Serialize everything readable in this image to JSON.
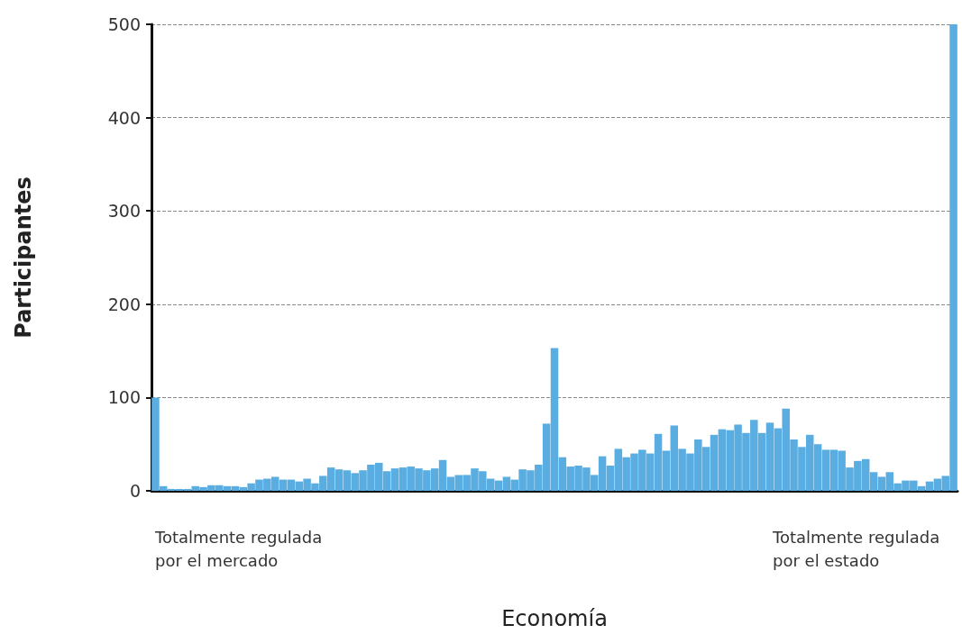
{
  "chart_data": {
    "type": "bar",
    "xlabel": "Economía",
    "ylabel": "Participantes",
    "categories": [
      null,
      null,
      null,
      null,
      null,
      null,
      null,
      null,
      null,
      null,
      null,
      null,
      null,
      null,
      null,
      null,
      null,
      null,
      null,
      null,
      null,
      null,
      null,
      null,
      null,
      null,
      null,
      null,
      null,
      null,
      null,
      null,
      null,
      null,
      null,
      null,
      null,
      null,
      null,
      null,
      null,
      null,
      null,
      null,
      null,
      null,
      null,
      null,
      null,
      null,
      null,
      null,
      null,
      null,
      null,
      null,
      null,
      null,
      null,
      null,
      null,
      null,
      null,
      null,
      null,
      null,
      null,
      null,
      null,
      null,
      null,
      null,
      null,
      null,
      null,
      null,
      null,
      null,
      null,
      null,
      null,
      null,
      null,
      null,
      null,
      null,
      null,
      null,
      null,
      null,
      null,
      null,
      null,
      null,
      null,
      null,
      null,
      null,
      null,
      null,
      null
    ],
    "values": [
      100,
      5,
      2,
      2,
      2,
      5,
      4,
      6,
      6,
      5,
      5,
      4,
      8,
      12,
      13,
      15,
      12,
      12,
      10,
      13,
      8,
      16,
      25,
      23,
      22,
      19,
      22,
      28,
      30,
      21,
      24,
      25,
      26,
      24,
      22,
      24,
      33,
      15,
      17,
      17,
      24,
      21,
      13,
      11,
      15,
      12,
      23,
      22,
      28,
      72,
      153,
      36,
      26,
      27,
      25,
      17,
      37,
      27,
      45,
      36,
      40,
      44,
      40,
      61,
      43,
      70,
      45,
      40,
      55,
      47,
      60,
      66,
      65,
      71,
      62,
      76,
      62,
      73,
      67,
      88,
      55,
      47,
      60,
      50,
      44,
      44,
      43,
      25,
      32,
      34,
      20,
      15,
      20,
      8,
      11,
      11,
      5,
      10,
      13,
      16,
      500
    ],
    "color": "#5aade0",
    "ylim": [
      0,
      500
    ],
    "yticks": [
      0,
      100,
      200,
      300,
      400,
      500
    ],
    "grid": "y",
    "annotations": [
      "Totalmente regulada por el mercado",
      "Totalmente regulada por el estado"
    ]
  }
}
